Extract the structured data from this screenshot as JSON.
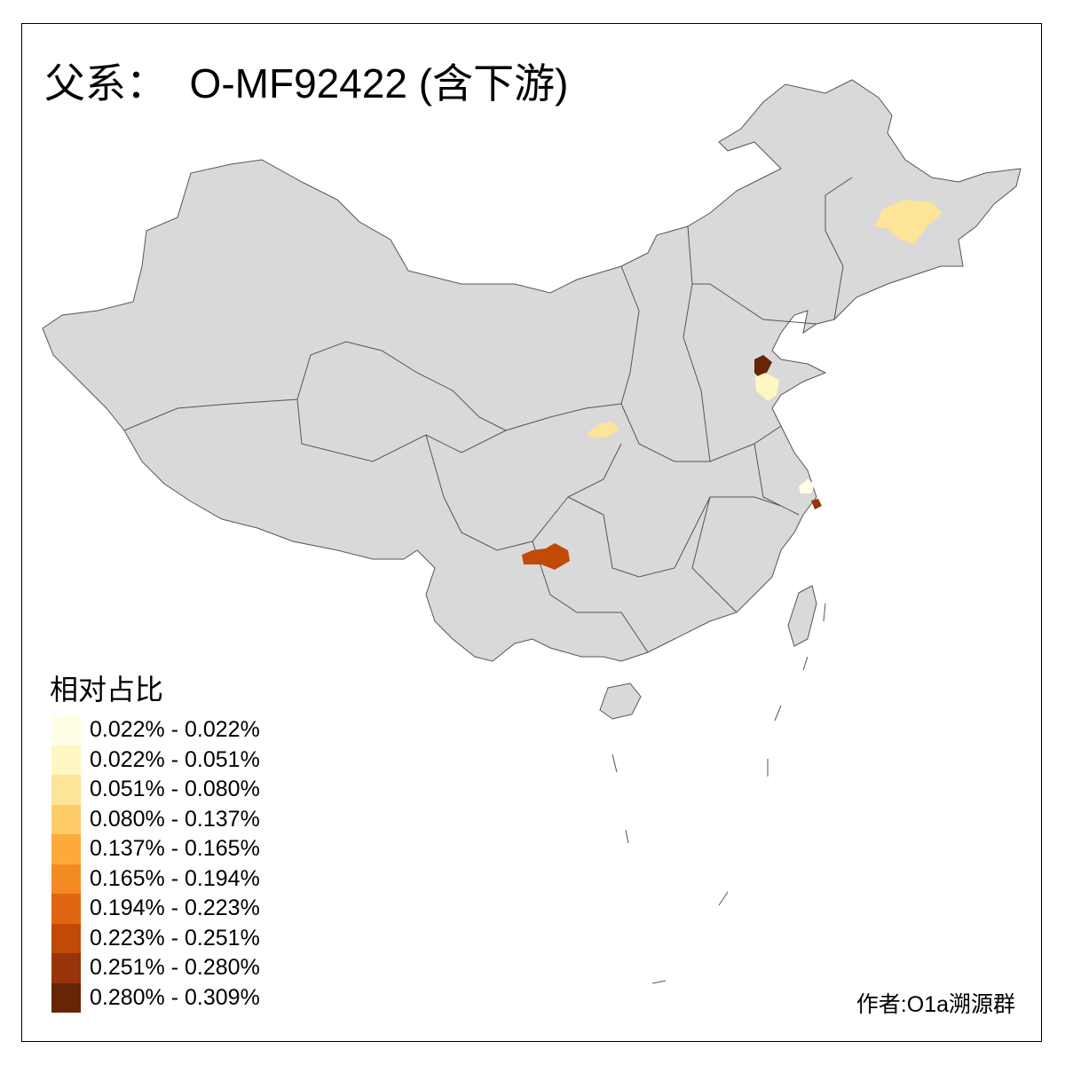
{
  "title": "父系：  O-MF92422 (含下游)",
  "legend": {
    "title": "相对占比",
    "items": [
      {
        "label": "0.022% - 0.022%",
        "color": "#FFFFE5"
      },
      {
        "label": "0.022% - 0.051%",
        "color": "#FFF7C2"
      },
      {
        "label": "0.051% - 0.080%",
        "color": "#FEE498"
      },
      {
        "label": "0.080% - 0.137%",
        "color": "#FECC66"
      },
      {
        "label": "0.137% - 0.165%",
        "color": "#FEAA3A"
      },
      {
        "label": "0.165% - 0.194%",
        "color": "#F38A22"
      },
      {
        "label": "0.194% - 0.223%",
        "color": "#E06612"
      },
      {
        "label": "0.223% - 0.251%",
        "color": "#C04A06"
      },
      {
        "label": "0.251% - 0.280%",
        "color": "#98330A"
      },
      {
        "label": "0.280% - 0.309%",
        "color": "#662506"
      }
    ]
  },
  "map": {
    "base_color": "#D9D9D9",
    "border_color": "#555555",
    "highlighted_regions": [
      {
        "region": "northeast (Heilongjiang)",
        "class": 2
      },
      {
        "region": "Shandong north",
        "class": 9
      },
      {
        "region": "Shandong central",
        "class": 1
      },
      {
        "region": "Shaanxi",
        "class": 2
      },
      {
        "region": "Guizhou",
        "class": 7
      },
      {
        "region": "Shanghai area",
        "class": 0
      },
      {
        "region": "Zhejiang north",
        "class": 8
      }
    ]
  },
  "credit": "作者:O1a溯源群"
}
